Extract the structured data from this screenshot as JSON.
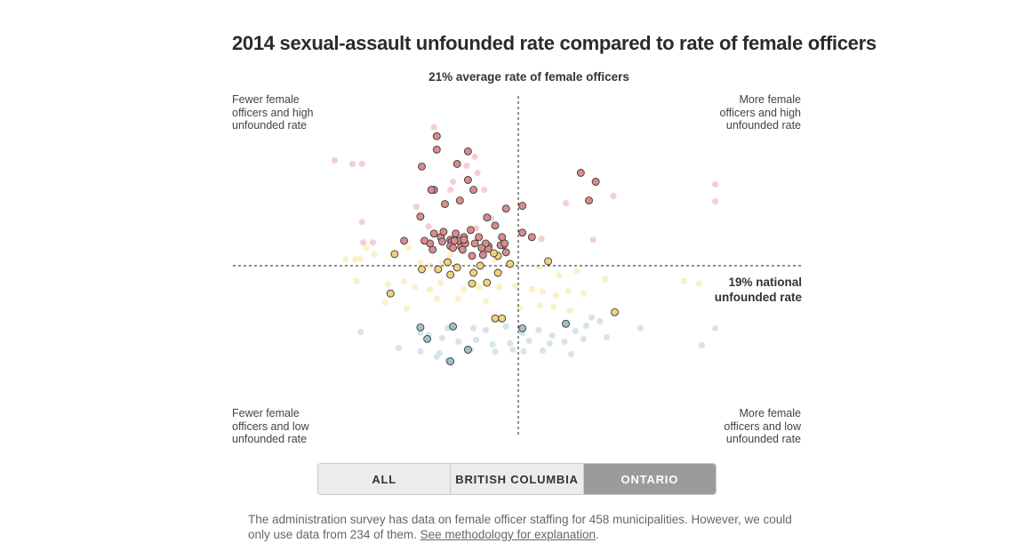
{
  "title": "2014 sexual-assault unfounded rate compared to rate of female officers",
  "vline_label": "21% average rate of female officers",
  "hline_label_1": "19% national",
  "hline_label_2": "unfounded rate",
  "quadrants": {
    "top_left": [
      "Fewer female",
      "officers and high",
      "unfounded rate"
    ],
    "top_right": [
      "More female",
      "officers and high",
      "unfounded rate"
    ],
    "bottom_left": [
      "Fewer female",
      "officers and low",
      "unfounded rate"
    ],
    "bottom_right": [
      "More female",
      "officers and low",
      "unfounded rate"
    ]
  },
  "filters": {
    "all": "ALL",
    "bc": "BRITISH COLUMBIA",
    "on": "ONTARIO",
    "selected": "ONTARIO"
  },
  "note": {
    "text": "The administration survey has data on female officer staffing for 458 municipalities. However, we could only use data from 234 of them.",
    "link": "See methodology for explanation",
    "end": "."
  },
  "colors": {
    "high": "#d98b8b",
    "mid": "#f2d27a",
    "low": "#9fbfc9",
    "faded_high": "#f4cfd2",
    "faded_mid": "#fbf0c7",
    "faded_low": "#d6e5ea"
  },
  "chart_data": {
    "type": "scatter",
    "title": "2014 sexual-assault unfounded rate compared to rate of female officers",
    "reference_lines": {
      "female_officer_rate_avg": 21,
      "national_unfounded_rate": 19
    },
    "xlim": [
      0,
      42
    ],
    "ylim": [
      0,
      38
    ],
    "series": [
      {
        "group": "high",
        "highlighted": true,
        "points": [
          [
            15.0,
            33.5
          ],
          [
            15.0,
            32.0
          ],
          [
            17.3,
            31.8
          ],
          [
            16.5,
            30.4
          ],
          [
            17.3,
            28.6
          ],
          [
            17.7,
            27.5
          ],
          [
            14.8,
            27.5
          ],
          [
            14.6,
            27.5
          ],
          [
            16.7,
            26.3
          ],
          [
            15.6,
            25.9
          ],
          [
            20.1,
            25.4
          ],
          [
            13.8,
            24.5
          ],
          [
            17.5,
            23.0
          ],
          [
            14.8,
            22.6
          ],
          [
            15.3,
            22.2
          ],
          [
            19.8,
            22.2
          ],
          [
            17.0,
            22.2
          ],
          [
            16.0,
            21.9
          ],
          [
            15.4,
            21.7
          ],
          [
            16.1,
            21.7
          ],
          [
            14.5,
            21.5
          ],
          [
            17.8,
            21.5
          ],
          [
            16.0,
            21.2
          ],
          [
            18.8,
            21.2
          ],
          [
            18.6,
            21.2
          ],
          [
            16.8,
            21.1
          ],
          [
            14.7,
            20.8
          ],
          [
            16.6,
            21.8
          ],
          [
            17.1,
            21.5
          ],
          [
            19.9,
            21.3
          ],
          [
            19.7,
            21.3
          ],
          [
            16.2,
            21.0
          ],
          [
            18.8,
            20.9
          ],
          [
            18.6,
            21.5
          ],
          [
            16.4,
            22.6
          ],
          [
            18.1,
            22.2
          ],
          [
            15.5,
            22.8
          ],
          [
            17.0,
            21.9
          ],
          [
            16.9,
            20.8
          ],
          [
            18.3,
            21.0
          ],
          [
            16.3,
            21.8
          ],
          [
            20.1,
            20.5
          ],
          [
            21.3,
            22.7
          ],
          [
            26.7,
            28.4
          ],
          [
            26.2,
            26.3
          ],
          [
            25.6,
            29.4
          ],
          [
            22.0,
            22.2
          ],
          [
            17.6,
            20.1
          ],
          [
            18.4,
            20.2
          ],
          [
            19.3,
            23.5
          ],
          [
            18.7,
            24.4
          ],
          [
            21.3,
            25.7
          ],
          [
            20.0,
            21.5
          ],
          [
            13.9,
            30.1
          ],
          [
            14.1,
            21.8
          ],
          [
            12.6,
            21.8
          ]
        ]
      },
      {
        "group": "mid",
        "highlighted": true,
        "points": [
          [
            11.9,
            20.3
          ],
          [
            15.8,
            19.4
          ],
          [
            16.5,
            18.8
          ],
          [
            18.2,
            19.0
          ],
          [
            17.7,
            18.2
          ],
          [
            19.5,
            20.1
          ],
          [
            19.2,
            20.4
          ],
          [
            20.4,
            19.2
          ],
          [
            23.2,
            19.5
          ],
          [
            15.1,
            18.6
          ],
          [
            13.9,
            18.6
          ],
          [
            16.0,
            18.0
          ],
          [
            17.6,
            17.0
          ],
          [
            11.6,
            15.9
          ],
          [
            18.7,
            17.1
          ],
          [
            19.5,
            18.2
          ],
          [
            19.3,
            13.1
          ],
          [
            19.8,
            13.1
          ],
          [
            28.1,
            13.8
          ]
        ]
      },
      {
        "group": "low",
        "highlighted": true,
        "points": [
          [
            13.8,
            12.1
          ],
          [
            14.3,
            10.8
          ],
          [
            16.2,
            12.2
          ],
          [
            21.3,
            12.0
          ],
          [
            24.5,
            12.5
          ],
          [
            17.3,
            9.6
          ],
          [
            16.0,
            8.3
          ]
        ]
      },
      {
        "group": "faded",
        "highlighted": false,
        "points": [
          [
            14.8,
            34.5
          ],
          [
            7.5,
            30.8
          ],
          [
            8.8,
            30.4
          ],
          [
            9.5,
            30.4
          ],
          [
            17.2,
            30.2
          ],
          [
            17.8,
            31.2
          ],
          [
            18.0,
            29.4
          ],
          [
            16.2,
            28.4
          ],
          [
            18.5,
            27.5
          ],
          [
            16.0,
            27.5
          ],
          [
            24.5,
            26.0
          ],
          [
            28.0,
            26.8
          ],
          [
            15.6,
            25.9
          ],
          [
            13.5,
            25.6
          ],
          [
            9.5,
            23.9
          ],
          [
            14.4,
            23.4
          ],
          [
            17.9,
            23.2
          ],
          [
            19.0,
            24.3
          ],
          [
            22.7,
            22.0
          ],
          [
            26.5,
            21.9
          ],
          [
            9.6,
            21.6
          ],
          [
            10.3,
            21.6
          ],
          [
            12.9,
            21.0
          ],
          [
            9.8,
            21.0
          ],
          [
            10.4,
            20.3
          ],
          [
            35.5,
            28.1
          ],
          [
            35.5,
            26.2
          ],
          [
            8.3,
            19.7
          ],
          [
            9.0,
            19.7
          ],
          [
            9.4,
            19.8
          ],
          [
            13.8,
            19.4
          ],
          [
            14.5,
            19.0
          ],
          [
            15.4,
            19.3
          ],
          [
            16.0,
            20.2
          ],
          [
            16.9,
            20.6
          ],
          [
            18.6,
            20.5
          ],
          [
            19.3,
            19.7
          ],
          [
            22.5,
            18.9
          ],
          [
            24.0,
            17.9
          ],
          [
            25.3,
            18.4
          ],
          [
            27.4,
            17.5
          ],
          [
            33.2,
            17.3
          ],
          [
            34.3,
            17.0
          ],
          [
            9.1,
            17.3
          ],
          [
            11.4,
            16.9
          ],
          [
            12.6,
            17.2
          ],
          [
            13.4,
            16.6
          ],
          [
            14.5,
            16.3
          ],
          [
            15.3,
            17.1
          ],
          [
            17.0,
            16.3
          ],
          [
            18.1,
            16.6
          ],
          [
            19.6,
            16.6
          ],
          [
            20.8,
            16.7
          ],
          [
            22.0,
            16.4
          ],
          [
            22.8,
            16.1
          ],
          [
            23.8,
            15.7
          ],
          [
            24.7,
            16.2
          ],
          [
            25.8,
            15.9
          ],
          [
            11.2,
            14.9
          ],
          [
            12.8,
            14.2
          ],
          [
            15.0,
            15.3
          ],
          [
            16.6,
            15.3
          ],
          [
            18.6,
            15.0
          ],
          [
            21.1,
            14.3
          ],
          [
            22.6,
            14.5
          ],
          [
            23.6,
            14.4
          ],
          [
            24.8,
            14.0
          ],
          [
            26.4,
            13.2
          ],
          [
            9.4,
            11.6
          ],
          [
            13.8,
            11.5
          ],
          [
            15.8,
            12.0
          ],
          [
            17.7,
            12.0
          ],
          [
            18.6,
            11.8
          ],
          [
            20.1,
            12.2
          ],
          [
            21.3,
            11.5
          ],
          [
            22.5,
            11.8
          ],
          [
            23.5,
            11.2
          ],
          [
            25.2,
            11.7
          ],
          [
            26.0,
            12.3
          ],
          [
            27.0,
            12.8
          ],
          [
            30.0,
            12.0
          ],
          [
            35.5,
            12.0
          ],
          [
            14.4,
            11.2
          ],
          [
            15.4,
            10.9
          ],
          [
            16.6,
            10.5
          ],
          [
            17.9,
            10.7
          ],
          [
            19.1,
            10.2
          ],
          [
            20.4,
            10.3
          ],
          [
            21.8,
            10.6
          ],
          [
            23.3,
            10.3
          ],
          [
            24.4,
            10.5
          ],
          [
            25.8,
            10.8
          ],
          [
            27.5,
            11.0
          ],
          [
            12.2,
            9.8
          ],
          [
            13.8,
            9.4
          ],
          [
            15.2,
            9.2
          ],
          [
            17.5,
            9.6
          ],
          [
            19.3,
            9.4
          ],
          [
            20.6,
            9.6
          ],
          [
            21.4,
            9.4
          ],
          [
            22.8,
            9.5
          ],
          [
            24.9,
            9.1
          ],
          [
            34.5,
            10.1
          ],
          [
            15.0,
            8.8
          ],
          [
            15.8,
            8.4
          ]
        ]
      }
    ],
    "x_meaning": "rate of female officers (%)",
    "y_meaning": "sexual-assault unfounded rate (%)"
  }
}
